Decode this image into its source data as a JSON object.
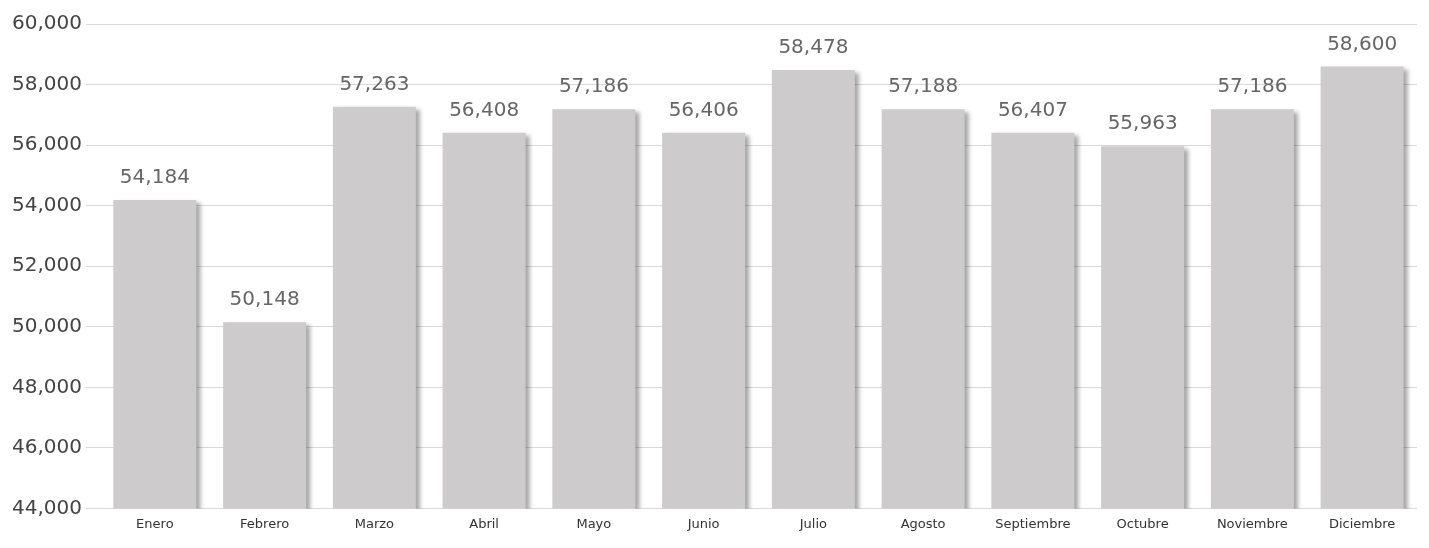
{
  "chart_data": {
    "type": "bar",
    "categories": [
      "Enero",
      "Febrero",
      "Marzo",
      "Abril",
      "Mayo",
      "Junio",
      "Julio",
      "Agosto",
      "Septiembre",
      "Octubre",
      "Noviembre",
      "Diciembre"
    ],
    "values": [
      54184,
      50148,
      57263,
      56408,
      57186,
      56406,
      58478,
      57188,
      56407,
      55963,
      57186,
      58600
    ],
    "value_labels": [
      "54,184",
      "50,148",
      "57,263",
      "56,408",
      "57,186",
      "56,406",
      "58,478",
      "57,188",
      "56,407",
      "55,963",
      "57,186",
      "58,600"
    ],
    "color": "#cdcbcc",
    "ylim": [
      44000,
      60000
    ],
    "yticks": [
      {
        "value": 44000,
        "label": "44,000"
      },
      {
        "value": 46000,
        "label": "46,000"
      },
      {
        "value": 48000,
        "label": "48,000"
      },
      {
        "value": 50000,
        "label": "50,000"
      },
      {
        "value": 52000,
        "label": "52,000"
      },
      {
        "value": 54000,
        "label": "54,000"
      },
      {
        "value": 56000,
        "label": "56,000"
      },
      {
        "value": 58000,
        "label": "58,000"
      },
      {
        "value": 60000,
        "label": "60,000"
      }
    ],
    "grid": "y",
    "legend": false
  }
}
